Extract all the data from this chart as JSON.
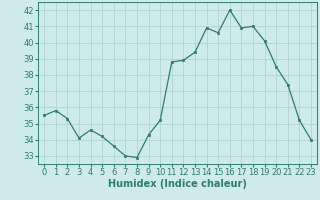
{
  "x": [
    0,
    1,
    2,
    3,
    4,
    5,
    6,
    7,
    8,
    9,
    10,
    11,
    12,
    13,
    14,
    15,
    16,
    17,
    18,
    19,
    20,
    21,
    22,
    23
  ],
  "y": [
    35.5,
    35.8,
    35.3,
    34.1,
    34.6,
    34.2,
    33.6,
    33.0,
    32.9,
    34.3,
    35.2,
    38.8,
    38.9,
    39.4,
    40.9,
    40.6,
    42.0,
    40.9,
    41.0,
    40.1,
    38.5,
    37.4,
    35.2,
    34.0
  ],
  "line_color": "#2e7d6e",
  "marker": "s",
  "marker_size": 2,
  "bg_color": "#ceeaea",
  "grid_color": "#aed4d4",
  "xlabel": "Humidex (Indice chaleur)",
  "xlim": [
    -0.5,
    23.5
  ],
  "ylim": [
    32.5,
    42.5
  ],
  "yticks": [
    33,
    34,
    35,
    36,
    37,
    38,
    39,
    40,
    41,
    42
  ],
  "xticks": [
    0,
    1,
    2,
    3,
    4,
    5,
    6,
    7,
    8,
    9,
    10,
    11,
    12,
    13,
    14,
    15,
    16,
    17,
    18,
    19,
    20,
    21,
    22,
    23
  ],
  "tick_fontsize": 6,
  "xlabel_fontsize": 7
}
